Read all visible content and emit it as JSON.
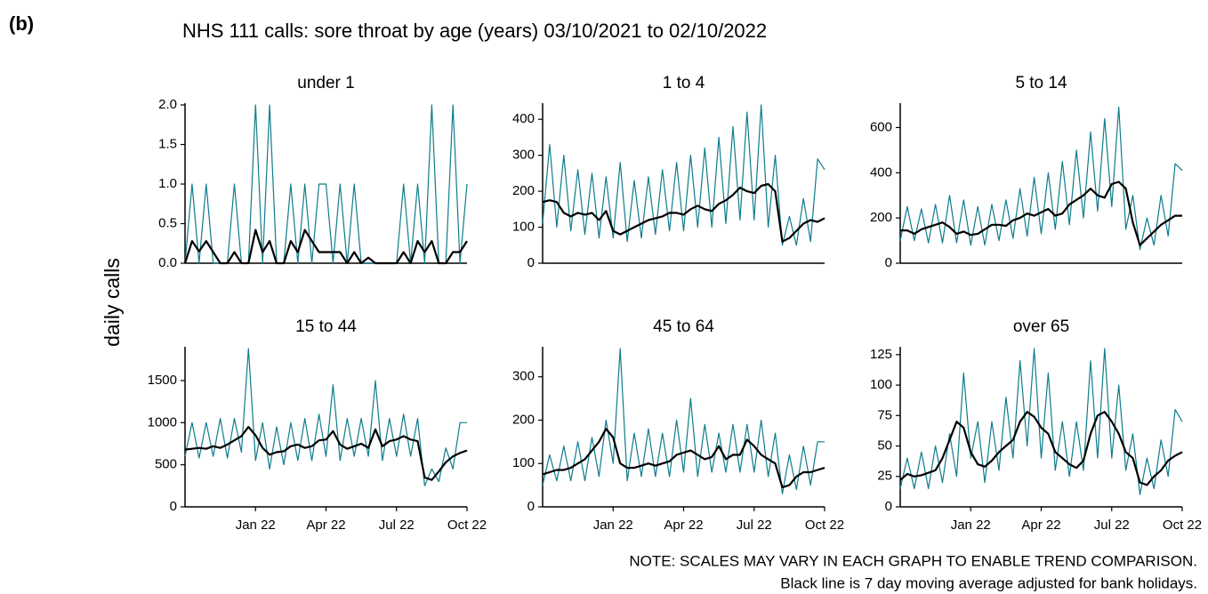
{
  "label": "(b)",
  "title": "NHS 111 calls: sore throat by age (years) 03/10/2021 to 02/10/2022",
  "ylabel": "daily calls",
  "notes": [
    "NOTE: SCALES MAY VARY IN EACH GRAPH TO ENABLE TREND COMPARISON.",
    "Black line is 7 day moving average adjusted for bank holidays."
  ],
  "chart_data": [
    {
      "type": "line",
      "title": "under 1",
      "x": [
        0,
        0.3,
        0.6,
        0.9,
        1.2,
        1.5,
        1.8,
        2.1,
        2.4,
        2.7,
        3,
        3.3,
        3.6,
        3.9,
        4.2,
        4.5,
        4.8,
        5.1,
        5.4,
        5.7,
        6,
        6.3,
        6.6,
        6.9,
        7.2,
        7.5,
        7.8,
        8.1,
        8.4,
        8.7,
        9,
        9.3,
        9.6,
        9.9,
        10.2,
        10.5,
        10.8,
        11.1,
        11.4,
        11.7,
        12
      ],
      "xlim": [
        0,
        12
      ],
      "ylim": [
        0,
        2
      ],
      "yticks": [
        {
          "value": 0,
          "label": "0.0"
        },
        {
          "value": 0.5,
          "label": "0.5"
        },
        {
          "value": 1,
          "label": "1.0"
        },
        {
          "value": 1.5,
          "label": "1.5"
        },
        {
          "value": 2,
          "label": "2.0"
        }
      ],
      "series": [
        {
          "color": "#0e7c8c",
          "values": [
            0,
            1,
            0,
            1,
            0,
            0,
            0,
            1,
            0,
            0,
            2,
            0,
            2,
            0,
            0,
            1,
            0,
            1,
            0,
            1,
            1,
            0,
            1,
            0,
            1,
            0,
            0,
            0,
            0,
            0,
            0,
            1,
            0,
            1,
            0,
            2,
            0,
            0,
            2,
            0,
            1
          ]
        },
        {
          "color": "#000000",
          "values": [
            0,
            0.28,
            0.15,
            0.28,
            0.14,
            0,
            0,
            0.14,
            0,
            0,
            0.42,
            0.14,
            0.28,
            0,
            0,
            0.28,
            0.14,
            0.42,
            0.28,
            0.14,
            0.14,
            0.14,
            0.14,
            0,
            0.14,
            0,
            0.07,
            0,
            0,
            0,
            0,
            0.14,
            0,
            0.28,
            0.14,
            0.28,
            0,
            0,
            0.14,
            0.14,
            0.28
          ]
        }
      ]
    },
    {
      "type": "line",
      "title": "1 to 4",
      "x": [
        0,
        0.3,
        0.6,
        0.9,
        1.2,
        1.5,
        1.8,
        2.1,
        2.4,
        2.7,
        3,
        3.3,
        3.6,
        3.9,
        4.2,
        4.5,
        4.8,
        5.1,
        5.4,
        5.7,
        6,
        6.3,
        6.6,
        6.9,
        7.2,
        7.5,
        7.8,
        8.1,
        8.4,
        8.7,
        9,
        9.3,
        9.6,
        9.9,
        10.2,
        10.5,
        10.8,
        11.1,
        11.4,
        11.7,
        12
      ],
      "xlim": [
        0,
        12
      ],
      "ylim": [
        0,
        440
      ],
      "yticks": [
        0,
        100,
        200,
        300,
        400
      ],
      "series": [
        {
          "color": "#0e7c8c",
          "values": [
            110,
            330,
            100,
            300,
            90,
            260,
            80,
            250,
            70,
            240,
            70,
            280,
            60,
            230,
            70,
            240,
            80,
            260,
            90,
            280,
            90,
            300,
            100,
            320,
            100,
            350,
            110,
            380,
            120,
            420,
            120,
            440,
            100,
            300,
            50,
            130,
            50,
            180,
            60,
            290,
            260
          ]
        },
        {
          "color": "#000000",
          "values": [
            170,
            175,
            170,
            140,
            130,
            140,
            135,
            140,
            120,
            145,
            90,
            80,
            90,
            100,
            110,
            120,
            125,
            130,
            140,
            140,
            135,
            150,
            160,
            150,
            145,
            165,
            175,
            190,
            210,
            200,
            195,
            215,
            220,
            200,
            60,
            70,
            90,
            110,
            120,
            115,
            125
          ]
        }
      ]
    },
    {
      "type": "line",
      "title": "5 to 14",
      "x": [
        0,
        0.3,
        0.6,
        0.9,
        1.2,
        1.5,
        1.8,
        2.1,
        2.4,
        2.7,
        3,
        3.3,
        3.6,
        3.9,
        4.2,
        4.5,
        4.8,
        5.1,
        5.4,
        5.7,
        6,
        6.3,
        6.6,
        6.9,
        7.2,
        7.5,
        7.8,
        8.1,
        8.4,
        8.7,
        9,
        9.3,
        9.6,
        9.9,
        10.2,
        10.5,
        10.8,
        11.1,
        11.4,
        11.7,
        12
      ],
      "xlim": [
        0,
        12
      ],
      "ylim": [
        0,
        700
      ],
      "yticks": [
        0,
        200,
        400,
        600
      ],
      "series": [
        {
          "color": "#0e7c8c",
          "values": [
            100,
            250,
            100,
            240,
            90,
            260,
            90,
            300,
            90,
            280,
            80,
            250,
            80,
            260,
            100,
            280,
            110,
            330,
            120,
            380,
            130,
            400,
            150,
            450,
            170,
            500,
            200,
            580,
            230,
            640,
            250,
            690,
            150,
            300,
            60,
            200,
            80,
            300,
            120,
            440,
            410
          ]
        },
        {
          "color": "#000000",
          "values": [
            145,
            145,
            130,
            150,
            160,
            170,
            180,
            160,
            130,
            140,
            125,
            130,
            150,
            170,
            170,
            165,
            190,
            200,
            220,
            210,
            225,
            240,
            210,
            220,
            260,
            280,
            300,
            330,
            300,
            290,
            350,
            360,
            330,
            180,
            80,
            110,
            140,
            170,
            190,
            210,
            210
          ]
        }
      ]
    },
    {
      "type": "line",
      "title": "15 to 44",
      "x": [
        0,
        0.3,
        0.6,
        0.9,
        1.2,
        1.5,
        1.8,
        2.1,
        2.4,
        2.7,
        3,
        3.3,
        3.6,
        3.9,
        4.2,
        4.5,
        4.8,
        5.1,
        5.4,
        5.7,
        6,
        6.3,
        6.6,
        6.9,
        7.2,
        7.5,
        7.8,
        8.1,
        8.4,
        8.7,
        9,
        9.3,
        9.6,
        9.9,
        10.2,
        10.5,
        10.8,
        11.1,
        11.4,
        11.7,
        12
      ],
      "xlim": [
        0,
        12
      ],
      "ylim": [
        0,
        1880
      ],
      "yticks": [
        0,
        500,
        1000,
        1500
      ],
      "xticks": [
        {
          "value": 3,
          "label": "Jan 22"
        },
        {
          "value": 6,
          "label": "Apr 22"
        },
        {
          "value": 9,
          "label": "Jul 22"
        },
        {
          "value": 12,
          "label": "Oct 22"
        }
      ],
      "series": [
        {
          "color": "#0e7c8c",
          "values": [
            600,
            1000,
            580,
            1000,
            600,
            1050,
            580,
            1050,
            650,
            1880,
            550,
            1000,
            450,
            950,
            500,
            1000,
            550,
            1050,
            550,
            1100,
            600,
            1450,
            550,
            1050,
            600,
            1050,
            600,
            1500,
            550,
            1050,
            600,
            1100,
            600,
            1050,
            250,
            450,
            300,
            700,
            450,
            1000,
            1000
          ]
        },
        {
          "color": "#000000",
          "values": [
            680,
            690,
            700,
            690,
            720,
            700,
            740,
            790,
            840,
            950,
            850,
            700,
            620,
            650,
            660,
            720,
            740,
            700,
            720,
            790,
            800,
            900,
            740,
            690,
            720,
            750,
            700,
            920,
            720,
            780,
            800,
            840,
            800,
            780,
            350,
            320,
            420,
            530,
            600,
            640,
            670
          ]
        }
      ]
    },
    {
      "type": "line",
      "title": "45 to 64",
      "x": [
        0,
        0.3,
        0.6,
        0.9,
        1.2,
        1.5,
        1.8,
        2.1,
        2.4,
        2.7,
        3,
        3.3,
        3.6,
        3.9,
        4.2,
        4.5,
        4.8,
        5.1,
        5.4,
        5.7,
        6,
        6.3,
        6.6,
        6.9,
        7.2,
        7.5,
        7.8,
        8.1,
        8.4,
        8.7,
        9,
        9.3,
        9.6,
        9.9,
        10.2,
        10.5,
        10.8,
        11.1,
        11.4,
        11.7,
        12
      ],
      "xlim": [
        0,
        12
      ],
      "ylim": [
        0,
        365
      ],
      "yticks": [
        0,
        100,
        200,
        300
      ],
      "xticks": [
        {
          "value": 3,
          "label": "Jan 22"
        },
        {
          "value": 6,
          "label": "Apr 22"
        },
        {
          "value": 9,
          "label": "Jul 22"
        },
        {
          "value": 12,
          "label": "Oct 22"
        }
      ],
      "series": [
        {
          "color": "#0e7c8c",
          "values": [
            50,
            120,
            60,
            140,
            60,
            150,
            60,
            160,
            70,
            200,
            100,
            365,
            60,
            170,
            70,
            180,
            70,
            170,
            70,
            200,
            80,
            250,
            70,
            190,
            80,
            170,
            80,
            190,
            80,
            190,
            80,
            200,
            70,
            170,
            30,
            120,
            40,
            140,
            50,
            150,
            150
          ]
        },
        {
          "color": "#000000",
          "values": [
            75,
            80,
            85,
            85,
            90,
            100,
            110,
            130,
            150,
            180,
            160,
            100,
            90,
            90,
            95,
            100,
            95,
            100,
            105,
            120,
            125,
            130,
            120,
            110,
            115,
            140,
            110,
            120,
            120,
            155,
            140,
            120,
            110,
            100,
            45,
            50,
            70,
            80,
            80,
            85,
            90
          ]
        }
      ]
    },
    {
      "type": "line",
      "title": "over 65",
      "x": [
        0,
        0.3,
        0.6,
        0.9,
        1.2,
        1.5,
        1.8,
        2.1,
        2.4,
        2.7,
        3,
        3.3,
        3.6,
        3.9,
        4.2,
        4.5,
        4.8,
        5.1,
        5.4,
        5.7,
        6,
        6.3,
        6.6,
        6.9,
        7.2,
        7.5,
        7.8,
        8.1,
        8.4,
        8.7,
        9,
        9.3,
        9.6,
        9.9,
        10.2,
        10.5,
        10.8,
        11.1,
        11.4,
        11.7,
        12
      ],
      "xlim": [
        0,
        12
      ],
      "ylim": [
        0,
        130
      ],
      "yticks": [
        0,
        25,
        50,
        75,
        100,
        125
      ],
      "xticks": [
        {
          "value": 3,
          "label": "Jan 22"
        },
        {
          "value": 6,
          "label": "Apr 22"
        },
        {
          "value": 9,
          "label": "Jul 22"
        },
        {
          "value": 12,
          "label": "Oct 22"
        }
      ],
      "series": [
        {
          "color": "#0e7c8c",
          "values": [
            15,
            40,
            15,
            45,
            15,
            50,
            20,
            60,
            25,
            110,
            40,
            70,
            20,
            70,
            30,
            90,
            40,
            120,
            50,
            130,
            40,
            110,
            30,
            70,
            25,
            70,
            30,
            120,
            40,
            130,
            40,
            100,
            30,
            60,
            10,
            40,
            15,
            55,
            25,
            80,
            70
          ]
        },
        {
          "color": "#000000",
          "values": [
            22,
            27,
            25,
            26,
            28,
            30,
            40,
            55,
            70,
            65,
            45,
            35,
            33,
            38,
            45,
            50,
            55,
            70,
            78,
            74,
            65,
            60,
            45,
            40,
            35,
            32,
            38,
            60,
            75,
            78,
            70,
            60,
            45,
            40,
            20,
            18,
            25,
            30,
            38,
            42,
            45
          ]
        }
      ]
    }
  ]
}
